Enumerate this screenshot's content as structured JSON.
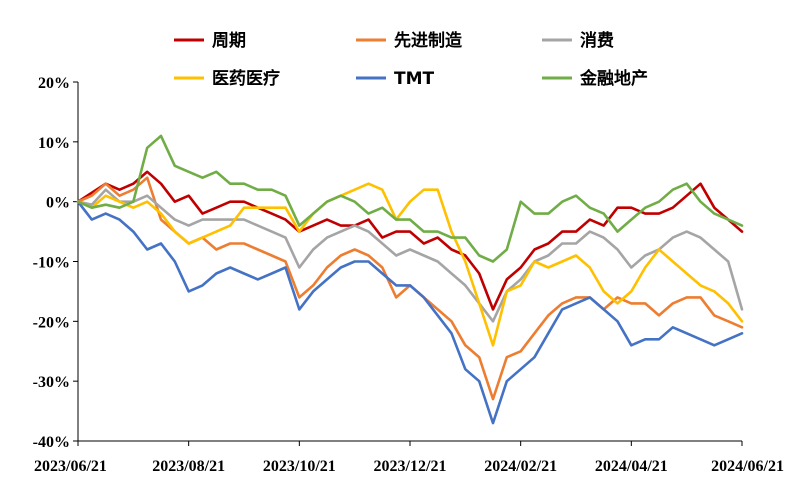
{
  "chart_data": {
    "type": "line",
    "title": "",
    "xlabel": "",
    "ylabel": "",
    "ylim": [
      -40,
      20
    ],
    "yticks": [
      20,
      10,
      0,
      -10,
      -20,
      -30,
      -40
    ],
    "ytick_labels": [
      "20%",
      "10%",
      "0%",
      "-10%",
      "-20%",
      "-30%",
      "-40%"
    ],
    "xlim": [
      0,
      12
    ],
    "xticks": [
      0,
      2,
      4,
      6,
      8,
      10,
      12
    ],
    "xtick_labels": [
      "2023/06/21",
      "2023/08/21",
      "2023/10/21",
      "2023/12/21",
      "2024/02/21",
      "2024/04/21",
      "2024/06/21"
    ],
    "grid": false,
    "legend_position": "top",
    "series": [
      {
        "name": "周期",
        "color": "#C00000",
        "x": [
          0,
          0.25,
          0.5,
          0.75,
          1,
          1.25,
          1.5,
          1.75,
          2,
          2.25,
          2.5,
          2.75,
          3,
          3.25,
          3.5,
          3.75,
          4,
          4.25,
          4.5,
          4.75,
          5,
          5.25,
          5.5,
          5.75,
          6,
          6.25,
          6.5,
          6.75,
          7,
          7.25,
          7.5,
          7.75,
          8,
          8.25,
          8.5,
          8.75,
          9,
          9.25,
          9.5,
          9.75,
          10,
          10.25,
          10.5,
          10.75,
          11,
          11.25,
          11.5,
          11.75,
          12
        ],
        "y": [
          0,
          1.5,
          3,
          2,
          3,
          5,
          3,
          0,
          1,
          -2,
          -1,
          0,
          0,
          -1,
          -2,
          -3,
          -5,
          -4,
          -3,
          -4,
          -4,
          -3,
          -6,
          -5,
          -5,
          -7,
          -6,
          -8,
          -9,
          -12,
          -18,
          -13,
          -11,
          -8,
          -7,
          -5,
          -5,
          -3,
          -4,
          -1,
          -1,
          -2,
          -2,
          -1,
          1,
          3,
          -1,
          -3,
          -5
        ]
      },
      {
        "name": "先进制造",
        "color": "#ED7D31",
        "x": [
          0,
          0.25,
          0.5,
          0.75,
          1,
          1.25,
          1.5,
          1.75,
          2,
          2.25,
          2.5,
          2.75,
          3,
          3.25,
          3.5,
          3.75,
          4,
          4.25,
          4.5,
          4.75,
          5,
          5.25,
          5.5,
          5.75,
          6,
          6.25,
          6.5,
          6.75,
          7,
          7.25,
          7.5,
          7.75,
          8,
          8.25,
          8.5,
          8.75,
          9,
          9.25,
          9.5,
          9.75,
          10,
          10.25,
          10.5,
          10.75,
          11,
          11.25,
          11.5,
          11.75,
          12
        ],
        "y": [
          0,
          1,
          3,
          1,
          2,
          4,
          -3,
          -5,
          -7,
          -6,
          -8,
          -7,
          -7,
          -8,
          -9,
          -10,
          -16,
          -14,
          -11,
          -9,
          -8,
          -9,
          -11,
          -16,
          -14,
          -16,
          -18,
          -20,
          -24,
          -26,
          -33,
          -26,
          -25,
          -22,
          -19,
          -17,
          -16,
          -16,
          -18,
          -16,
          -17,
          -17,
          -19,
          -17,
          -16,
          -16,
          -19,
          -20,
          -21
        ]
      },
      {
        "name": "消费",
        "color": "#A5A5A5",
        "x": [
          0,
          0.25,
          0.5,
          0.75,
          1,
          1.25,
          1.5,
          1.75,
          2,
          2.25,
          2.5,
          2.75,
          3,
          3.25,
          3.5,
          3.75,
          4,
          4.25,
          4.5,
          4.75,
          5,
          5.25,
          5.5,
          5.75,
          6,
          6.25,
          6.5,
          6.75,
          7,
          7.25,
          7.5,
          7.75,
          8,
          8.25,
          8.5,
          8.75,
          9,
          9.25,
          9.5,
          9.75,
          10,
          10.25,
          10.5,
          10.75,
          11,
          11.25,
          11.5,
          11.75,
          12
        ],
        "y": [
          0,
          -0.5,
          2,
          0,
          0,
          1,
          -1,
          -3,
          -4,
          -3,
          -3,
          -3,
          -3,
          -4,
          -5,
          -6,
          -11,
          -8,
          -6,
          -5,
          -4,
          -5,
          -7,
          -9,
          -8,
          -9,
          -10,
          -12,
          -14,
          -17,
          -20,
          -15,
          -13,
          -10,
          -9,
          -7,
          -7,
          -5,
          -6,
          -8,
          -11,
          -9,
          -8,
          -6,
          -5,
          -6,
          -8,
          -10,
          -18
        ]
      },
      {
        "name": "医药医疗",
        "color": "#FFC000",
        "x": [
          0,
          0.25,
          0.5,
          0.75,
          1,
          1.25,
          1.5,
          1.75,
          2,
          2.25,
          2.5,
          2.75,
          3,
          3.25,
          3.5,
          3.75,
          4,
          4.25,
          4.5,
          4.75,
          5,
          5.25,
          5.5,
          5.75,
          6,
          6.25,
          6.5,
          6.75,
          7,
          7.25,
          7.5,
          7.75,
          8,
          8.25,
          8.5,
          8.75,
          9,
          9.25,
          9.5,
          9.75,
          10,
          10.25,
          10.5,
          10.75,
          11,
          11.25,
          11.5,
          11.75,
          12
        ],
        "y": [
          0,
          -1,
          1,
          0,
          -1,
          0,
          -2,
          -5,
          -7,
          -6,
          -5,
          -4,
          -1,
          -1,
          -1,
          -1,
          -5,
          -2,
          0,
          1,
          2,
          3,
          2,
          -3,
          0,
          2,
          2,
          -5,
          -10,
          -17,
          -24,
          -15,
          -14,
          -10,
          -11,
          -10,
          -9,
          -11,
          -15,
          -17,
          -15,
          -11,
          -8,
          -10,
          -12,
          -14,
          -15,
          -17,
          -20
        ]
      },
      {
        "name": "TMT",
        "color": "#4472C4",
        "x": [
          0,
          0.25,
          0.5,
          0.75,
          1,
          1.25,
          1.5,
          1.75,
          2,
          2.25,
          2.5,
          2.75,
          3,
          3.25,
          3.5,
          3.75,
          4,
          4.25,
          4.5,
          4.75,
          5,
          5.25,
          5.5,
          5.75,
          6,
          6.25,
          6.5,
          6.75,
          7,
          7.25,
          7.5,
          7.75,
          8,
          8.25,
          8.5,
          8.75,
          9,
          9.25,
          9.5,
          9.75,
          10,
          10.25,
          10.5,
          10.75,
          11,
          11.25,
          11.5,
          11.75,
          12
        ],
        "y": [
          0,
          -3,
          -2,
          -3,
          -5,
          -8,
          -7,
          -10,
          -15,
          -14,
          -12,
          -11,
          -12,
          -13,
          -12,
          -11,
          -18,
          -15,
          -13,
          -11,
          -10,
          -10,
          -12,
          -14,
          -14,
          -16,
          -19,
          -22,
          -28,
          -30,
          -37,
          -30,
          -28,
          -26,
          -22,
          -18,
          -17,
          -16,
          -18,
          -20,
          -24,
          -23,
          -23,
          -21,
          -22,
          -23,
          -24,
          -23,
          -22
        ]
      },
      {
        "name": "金融地产",
        "color": "#70AD47",
        "x": [
          0,
          0.25,
          0.5,
          0.75,
          1,
          1.25,
          1.5,
          1.75,
          2,
          2.25,
          2.5,
          2.75,
          3,
          3.25,
          3.5,
          3.75,
          4,
          4.25,
          4.5,
          4.75,
          5,
          5.25,
          5.5,
          5.75,
          6,
          6.25,
          6.5,
          6.75,
          7,
          7.25,
          7.5,
          7.75,
          8,
          8.25,
          8.5,
          8.75,
          9,
          9.25,
          9.5,
          9.75,
          10,
          10.25,
          10.5,
          10.75,
          11,
          11.25,
          11.5,
          11.75,
          12
        ],
        "y": [
          0,
          -1,
          -0.5,
          -1,
          0,
          9,
          11,
          6,
          5,
          4,
          5,
          3,
          3,
          2,
          2,
          1,
          -4,
          -2,
          0,
          1,
          0,
          -2,
          -1,
          -3,
          -3,
          -5,
          -5,
          -6,
          -6,
          -9,
          -10,
          -8,
          0,
          -2,
          -2,
          0,
          1,
          -1,
          -2,
          -5,
          -3,
          -1,
          0,
          2,
          3,
          0,
          -2,
          -3,
          -4
        ]
      }
    ]
  }
}
